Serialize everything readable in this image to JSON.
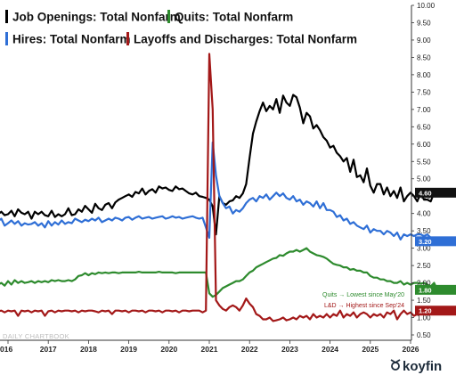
{
  "chart_data": {
    "type": "line",
    "x_start": 2015.75,
    "x_step_months": 1,
    "ylim": [
      0.5,
      10
    ],
    "y_ticks": [
      "0.50",
      "1.00",
      "1.50",
      "2.00",
      "2.50",
      "3.00",
      "3.50",
      "4.00",
      "4.50",
      "5.00",
      "5.50",
      "6.00",
      "6.50",
      "7.00",
      "7.50",
      "8.00",
      "8.50",
      "9.00",
      "9.50",
      "10.00"
    ],
    "x_ticks": [
      "2016",
      "2017",
      "2018",
      "2019",
      "2020",
      "2021",
      "2022",
      "2023",
      "2024",
      "2025",
      "2026"
    ],
    "series": [
      {
        "name": "Job Openings: Total Nonfarm",
        "color": "#000000",
        "badge": "4.60",
        "values": [
          3.98,
          4.05,
          3.95,
          3.98,
          4.08,
          3.92,
          4.12,
          4.02,
          3.98,
          4.05,
          3.85,
          4.05,
          3.98,
          4.05,
          3.95,
          3.92,
          4.08,
          3.9,
          3.98,
          3.92,
          3.98,
          4.15,
          3.95,
          3.98,
          4.12,
          4.05,
          4.22,
          4.12,
          4.02,
          4.28,
          4.15,
          4.1,
          4.25,
          4.3,
          4.15,
          4.32,
          4.4,
          4.45,
          4.5,
          4.55,
          4.48,
          4.62,
          4.58,
          4.72,
          4.55,
          4.65,
          4.7,
          4.6,
          4.78,
          4.72,
          4.75,
          4.68,
          4.65,
          4.78,
          4.7,
          4.72,
          4.65,
          4.58,
          4.55,
          4.6,
          4.5,
          4.48,
          4.45,
          4.4,
          4.2,
          3.4,
          4.5,
          4.3,
          4.25,
          4.35,
          4.38,
          4.5,
          4.45,
          4.58,
          4.85,
          5.6,
          6.3,
          6.65,
          6.95,
          7.2,
          6.95,
          7.1,
          7.0,
          7.3,
          6.9,
          7.4,
          7.2,
          7.1,
          7.42,
          7.35,
          7.05,
          6.6,
          6.9,
          6.8,
          6.45,
          6.55,
          6.4,
          6.2,
          6.1,
          5.9,
          5.95,
          5.75,
          5.65,
          5.5,
          5.6,
          5.2,
          5.55,
          5.05,
          5.1,
          4.9,
          5.3,
          4.8,
          4.6,
          4.85,
          4.85,
          4.55,
          4.75,
          4.5,
          4.65,
          4.45,
          4.75,
          4.35,
          4.5,
          4.6,
          4.5,
          4.35,
          4.6,
          4.4,
          4.4,
          4.35,
          4.6,
          4.6
        ]
      },
      {
        "name": "Hires: Total Nonfarm",
        "color": "#2f6fd6",
        "badge": "3.20",
        "values": [
          3.78,
          3.85,
          3.65,
          3.72,
          3.8,
          3.7,
          3.78,
          3.65,
          3.72,
          3.68,
          3.7,
          3.75,
          3.65,
          3.72,
          3.6,
          3.78,
          3.65,
          3.75,
          3.68,
          3.8,
          3.7,
          3.75,
          3.72,
          3.85,
          3.8,
          3.75,
          3.82,
          3.78,
          3.85,
          3.8,
          3.88,
          3.75,
          3.8,
          3.85,
          3.8,
          3.88,
          3.85,
          3.8,
          3.88,
          3.9,
          3.82,
          3.88,
          3.92,
          3.85,
          3.88,
          3.9,
          3.85,
          3.88,
          3.9,
          3.92,
          3.85,
          3.88,
          3.92,
          3.88,
          3.9,
          3.85,
          3.88,
          3.9,
          3.92,
          3.88,
          3.85,
          3.88,
          3.6,
          3.3,
          6.05,
          5.1,
          4.5,
          4.3,
          4.15,
          4.2,
          4.0,
          4.1,
          4.05,
          4.15,
          4.3,
          4.4,
          4.45,
          4.35,
          4.5,
          4.45,
          4.55,
          4.4,
          4.5,
          4.6,
          4.5,
          4.58,
          4.45,
          4.4,
          4.5,
          4.35,
          4.4,
          4.25,
          4.35,
          4.3,
          4.2,
          4.35,
          4.15,
          4.3,
          4.1,
          4.1,
          4.05,
          3.9,
          3.95,
          3.8,
          3.85,
          3.7,
          3.75,
          3.65,
          3.6,
          3.55,
          3.65,
          3.45,
          3.55,
          3.5,
          3.5,
          3.4,
          3.5,
          3.45,
          3.35,
          3.45,
          3.25,
          3.4,
          3.35,
          3.4,
          3.35,
          3.4,
          3.4,
          3.35,
          3.4,
          3.3,
          3.25,
          3.2
        ]
      },
      {
        "name": "Quits: Total Nonfarm",
        "color": "#2e8b2e",
        "badge": "1.80",
        "values": [
          1.95,
          2.0,
          1.92,
          2.05,
          1.95,
          2.08,
          2.0,
          2.05,
          2.0,
          2.02,
          2.05,
          2.0,
          2.05,
          2.02,
          2.05,
          2.02,
          2.08,
          2.05,
          2.08,
          2.05,
          2.05,
          2.08,
          2.05,
          2.1,
          2.2,
          2.22,
          2.28,
          2.22,
          2.28,
          2.25,
          2.3,
          2.28,
          2.3,
          2.28,
          2.3,
          2.3,
          2.28,
          2.3,
          2.3,
          2.3,
          2.3,
          2.3,
          2.32,
          2.3,
          2.3,
          2.3,
          2.3,
          2.3,
          2.32,
          2.3,
          2.3,
          2.3,
          2.3,
          2.28,
          2.3,
          2.3,
          2.3,
          2.3,
          2.3,
          2.3,
          2.3,
          2.3,
          2.3,
          1.7,
          1.6,
          1.65,
          1.75,
          1.85,
          1.9,
          1.95,
          2.0,
          2.05,
          2.05,
          2.1,
          2.2,
          2.3,
          2.35,
          2.45,
          2.5,
          2.55,
          2.6,
          2.65,
          2.7,
          2.72,
          2.8,
          2.78,
          2.85,
          2.9,
          2.9,
          2.95,
          2.9,
          2.95,
          3.0,
          2.9,
          2.85,
          2.8,
          2.78,
          2.75,
          2.7,
          2.62,
          2.55,
          2.52,
          2.5,
          2.45,
          2.45,
          2.38,
          2.4,
          2.35,
          2.35,
          2.3,
          2.3,
          2.2,
          2.15,
          2.15,
          2.1,
          2.1,
          2.05,
          2.05,
          2.0,
          2.0,
          2.05,
          1.95,
          2.0,
          1.95,
          2.0,
          2.0,
          1.98,
          2.0,
          1.95,
          1.9,
          2.0,
          1.8
        ]
      },
      {
        "name": "Layoffs and Discharges: Total Nonfarm",
        "color": "#a31818",
        "badge": "1.20",
        "values": [
          1.18,
          1.2,
          1.15,
          1.2,
          1.18,
          1.2,
          1.05,
          1.2,
          1.18,
          1.2,
          1.15,
          1.2,
          1.18,
          1.2,
          1.05,
          1.18,
          1.2,
          1.15,
          1.2,
          1.18,
          1.2,
          1.2,
          1.18,
          1.2,
          1.15,
          1.2,
          1.18,
          1.2,
          1.2,
          1.18,
          1.15,
          1.2,
          1.18,
          1.2,
          1.1,
          1.2,
          1.2,
          1.18,
          1.2,
          1.15,
          1.2,
          1.2,
          1.18,
          1.2,
          1.15,
          1.2,
          1.2,
          1.18,
          1.2,
          1.15,
          1.2,
          1.2,
          1.18,
          1.2,
          1.15,
          1.2,
          1.2,
          1.18,
          1.2,
          1.2,
          1.2,
          1.15,
          1.2,
          8.6,
          7.0,
          1.5,
          1.35,
          1.25,
          1.2,
          1.3,
          1.35,
          1.3,
          1.2,
          1.35,
          1.55,
          1.4,
          1.3,
          1.1,
          1.05,
          0.95,
          0.95,
          1.0,
          0.9,
          0.92,
          0.95,
          1.0,
          0.92,
          0.95,
          1.0,
          0.95,
          1.05,
          1.0,
          1.05,
          0.95,
          1.1,
          1.0,
          1.05,
          1.0,
          1.1,
          1.0,
          1.1,
          1.05,
          1.2,
          1.0,
          1.1,
          1.05,
          1.15,
          1.0,
          1.1,
          1.15,
          1.1,
          1.0,
          1.1,
          1.05,
          1.1,
          1.0,
          1.15,
          1.1,
          1.2,
          0.95,
          1.1,
          1.2,
          1.1,
          1.15,
          1.05,
          1.1,
          1.15,
          1.1,
          1.15,
          1.15,
          1.2,
          1.2
        ]
      }
    ],
    "legend": [
      {
        "label": "Job Openings: Total Nonfarm",
        "color": "#000000"
      },
      {
        "label": "Quits: Total Nonfarm",
        "color": "#2e8b2e"
      },
      {
        "label": "Hires: Total Nonfarm",
        "color": "#2f6fd6"
      },
      {
        "label": "Layoffs and Discharges: Total Nonfarm",
        "color": "#a31818"
      }
    ],
    "annotations": [
      {
        "text": "Quits → Lowest since May'20",
        "color": "#2e8b2e"
      },
      {
        "text": "L&D → Highest since Sep'24",
        "color": "#a31818"
      }
    ]
  },
  "watermark": "DAILY CHARTBOOK",
  "brand": "koyfin"
}
